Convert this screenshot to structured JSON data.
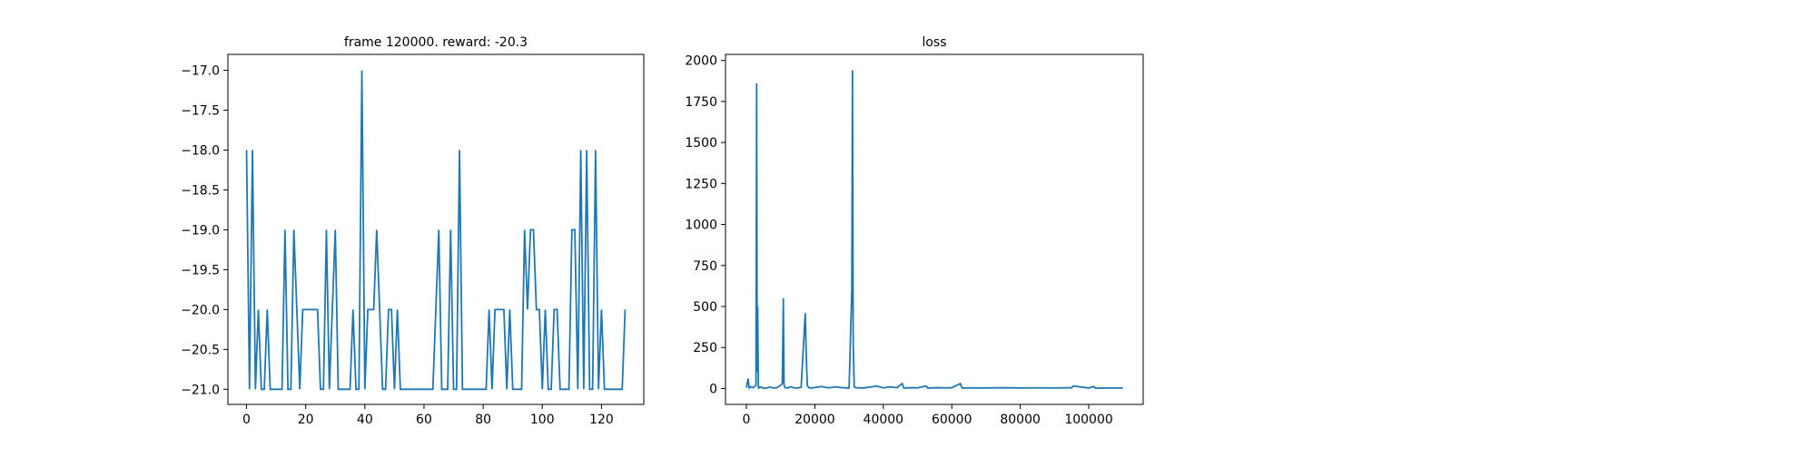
{
  "chart_data": [
    {
      "type": "line",
      "title": "frame 120000. reward: -20.3",
      "x": [
        0,
        1,
        2,
        3,
        4,
        5,
        6,
        7,
        8,
        9,
        10,
        11,
        12,
        13,
        14,
        15,
        16,
        17,
        18,
        19,
        20,
        21,
        22,
        23,
        24,
        25,
        26,
        27,
        28,
        29,
        30,
        31,
        32,
        33,
        34,
        35,
        36,
        37,
        38,
        39,
        40,
        41,
        42,
        43,
        44,
        45,
        46,
        47,
        48,
        49,
        50,
        51,
        52,
        53,
        54,
        55,
        56,
        57,
        58,
        59,
        60,
        61,
        62,
        63,
        64,
        65,
        66,
        67,
        68,
        69,
        70,
        71,
        72,
        73,
        74,
        75,
        76,
        77,
        78,
        79,
        80,
        81,
        82,
        83,
        84,
        85,
        86,
        87,
        88,
        89,
        90,
        91,
        92,
        93,
        94,
        95,
        96,
        97,
        98,
        99,
        100,
        101,
        102,
        103,
        104,
        105,
        106,
        107,
        108,
        109,
        110,
        111,
        112,
        113,
        114,
        115,
        116,
        117,
        118,
        119,
        120,
        121,
        122,
        123,
        124,
        125,
        126,
        127,
        128
      ],
      "series": [
        {
          "name": "reward",
          "color": "#1f77b4",
          "values": [
            -18,
            -21,
            -18,
            -21,
            -20,
            -21,
            -21,
            -20,
            -21,
            -21,
            -21,
            -21,
            -21,
            -19,
            -21,
            -21,
            -19,
            -20,
            -21,
            -20,
            -20,
            -20,
            -20,
            -20,
            -20,
            -21,
            -21,
            -19,
            -21,
            -20,
            -19,
            -21,
            -21,
            -21,
            -21,
            -21,
            -20,
            -21,
            -21,
            -17,
            -21,
            -20,
            -20,
            -20,
            -19,
            -20,
            -21,
            -21,
            -20,
            -20,
            -21,
            -20,
            -21,
            -21,
            -21,
            -21,
            -21,
            -21,
            -21,
            -21,
            -21,
            -21,
            -21,
            -21,
            -20,
            -19,
            -21,
            -21,
            -21,
            -19,
            -21,
            -21,
            -18,
            -21,
            -21,
            -21,
            -21,
            -21,
            -21,
            -21,
            -21,
            -21,
            -20,
            -21,
            -20,
            -20,
            -20,
            -20,
            -21,
            -20,
            -21,
            -21,
            -21,
            -21,
            -19,
            -20,
            -19,
            -19,
            -20,
            -20,
            -21,
            -20,
            -21,
            -21,
            -20,
            -20,
            -21,
            -21,
            -21,
            -21,
            -19,
            -19,
            -21,
            -18,
            -21,
            -18,
            -21,
            -21,
            -18,
            -21,
            -20,
            -21,
            -21,
            -21,
            -21,
            -21,
            -21,
            -21,
            -20
          ]
        }
      ],
      "xlim": [
        -6.3,
        134.3
      ],
      "ylim": [
        -21.19,
        -16.8
      ],
      "xticks": [
        0,
        20,
        40,
        60,
        80,
        100,
        120
      ],
      "yticks": [
        {
          "value": -21,
          "label": "−21.0"
        },
        {
          "value": -20.5,
          "label": "−20.5"
        },
        {
          "value": -20,
          "label": "−20.0"
        },
        {
          "value": -19.5,
          "label": "−19.5"
        },
        {
          "value": -19,
          "label": "−19.0"
        },
        {
          "value": -18.5,
          "label": "−18.5"
        },
        {
          "value": -18,
          "label": "−18.0"
        },
        {
          "value": -17.5,
          "label": "−17.5"
        },
        {
          "value": -17,
          "label": "−17.0"
        }
      ]
    },
    {
      "type": "line",
      "title": "loss",
      "x": [
        0,
        500,
        800,
        1200,
        2000,
        2800,
        3000,
        3150,
        3300,
        3500,
        3700,
        4000,
        5000,
        6000,
        7000,
        8000,
        9000,
        10000,
        10500,
        10800,
        11000,
        11300,
        12000,
        13000,
        14000,
        15000,
        16000,
        17200,
        17500,
        17800,
        18200,
        19000,
        20000,
        22000,
        24000,
        26000,
        28000,
        30000,
        30800,
        31000,
        31200,
        31500,
        32000,
        34000,
        36000,
        38000,
        40000,
        42000,
        44000,
        45500,
        46000,
        48000,
        50000,
        52500,
        53000,
        56000,
        58000,
        60000,
        62500,
        63000,
        66000,
        70000,
        75000,
        80000,
        85000,
        90000,
        95000,
        95500,
        100000,
        101500,
        102000,
        106000,
        110000
      ],
      "series": [
        {
          "name": "loss",
          "color": "#1f77b4",
          "values": [
            5,
            60,
            3,
            10,
            5,
            20,
            1860,
            100,
            500,
            5,
            3,
            10,
            2,
            4,
            8,
            3,
            5,
            20,
            30,
            550,
            20,
            5,
            3,
            10,
            4,
            3,
            8,
            460,
            200,
            20,
            5,
            3,
            6,
            12,
            4,
            10,
            5,
            3,
            600,
            1940,
            280,
            10,
            5,
            3,
            8,
            15,
            4,
            10,
            5,
            30,
            3,
            5,
            4,
            15,
            3,
            5,
            4,
            5,
            30,
            3,
            4,
            3,
            5,
            3,
            4,
            3,
            5,
            15,
            3,
            12,
            2,
            3,
            3
          ]
        }
      ],
      "xlim": [
        -6100,
        115900
      ],
      "ylim": [
        -97,
        2037
      ],
      "xticks": [
        0,
        20000,
        40000,
        60000,
        80000,
        100000
      ],
      "yticks": [
        0,
        250,
        500,
        750,
        1000,
        1250,
        1500,
        1750,
        2000
      ]
    }
  ]
}
